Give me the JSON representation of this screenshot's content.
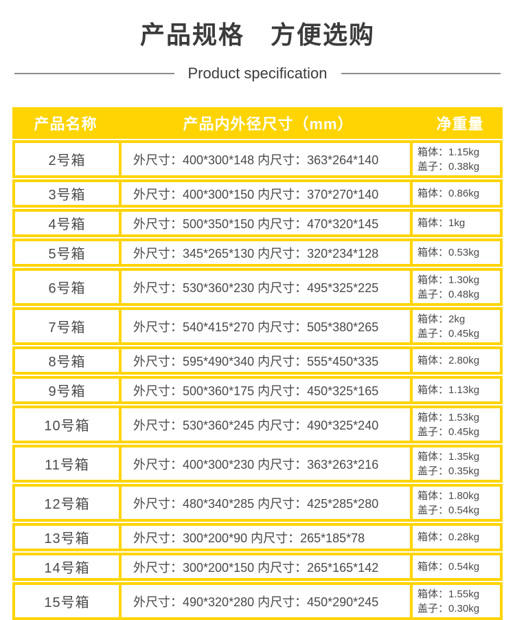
{
  "chart_data": {
    "type": "table",
    "title": "产品规格　方便选购",
    "subtitle": "Product specification",
    "columns": [
      "产品名称",
      "产品内外径尺寸（mm）",
      "净重量"
    ],
    "rows": [
      {
        "name": "2号箱",
        "dims": "外尺寸：400*300*148 内尺寸：363*264*140",
        "weights": [
          "箱体：1.15kg",
          "盖子：0.38kg"
        ]
      },
      {
        "name": "3号箱",
        "dims": "外尺寸：400*300*150 内尺寸：370*270*140",
        "weights": [
          "箱体：0.86kg"
        ]
      },
      {
        "name": "4号箱",
        "dims": "外尺寸：500*350*150 内尺寸：470*320*145",
        "weights": [
          "箱体：1kg"
        ]
      },
      {
        "name": "5号箱",
        "dims": "外尺寸：345*265*130 内尺寸：320*234*128",
        "weights": [
          "箱体：0.53kg"
        ]
      },
      {
        "name": "6号箱",
        "dims": "外尺寸：530*360*230 内尺寸：495*325*225",
        "weights": [
          "箱体：1.30kg",
          "盖子：0.48kg"
        ]
      },
      {
        "name": "7号箱",
        "dims": "外尺寸：540*415*270 内尺寸：505*380*265",
        "weights": [
          "箱体：2kg",
          "盖子：0.45kg"
        ]
      },
      {
        "name": "8号箱",
        "dims": "外尺寸：595*490*340 内尺寸：555*450*335",
        "weights": [
          "箱体：2.80kg"
        ]
      },
      {
        "name": "9号箱",
        "dims": "外尺寸：500*360*175 内尺寸：450*325*165",
        "weights": [
          "箱体：1.13kg"
        ]
      },
      {
        "name": "10号箱",
        "dims": "外尺寸：530*360*245 内尺寸：490*325*240",
        "weights": [
          "箱体：1.53kg",
          "盖子：0.45kg"
        ]
      },
      {
        "name": "11号箱",
        "dims": "外尺寸：400*300*230 内尺寸：363*263*216",
        "weights": [
          "箱体：1.35kg",
          "盖子：0.35kg"
        ]
      },
      {
        "name": "12号箱",
        "dims": "外尺寸：480*340*285 内尺寸：425*285*280",
        "weights": [
          "箱体：1.80kg",
          "盖子：0.54kg"
        ]
      },
      {
        "name": "13号箱",
        "dims": "外尺寸：300*200*90 内尺寸：265*185*78",
        "weights": [
          "箱体：0.28kg"
        ]
      },
      {
        "name": "14号箱",
        "dims": "外尺寸：300*200*150 内尺寸：265*165*142",
        "weights": [
          "箱体：0.54kg"
        ]
      },
      {
        "name": "15号箱",
        "dims": "外尺寸：490*320*280 内尺寸：450*290*245",
        "weights": [
          "箱体：1.55kg",
          "盖子：0.30kg"
        ]
      }
    ]
  },
  "colors": {
    "accent_yellow": "#FFD400",
    "header_text": "#FFFFFF",
    "body_text": "#4A4A4A",
    "divider_gray": "#8C8C8C",
    "title_text": "#3B3B3B"
  }
}
